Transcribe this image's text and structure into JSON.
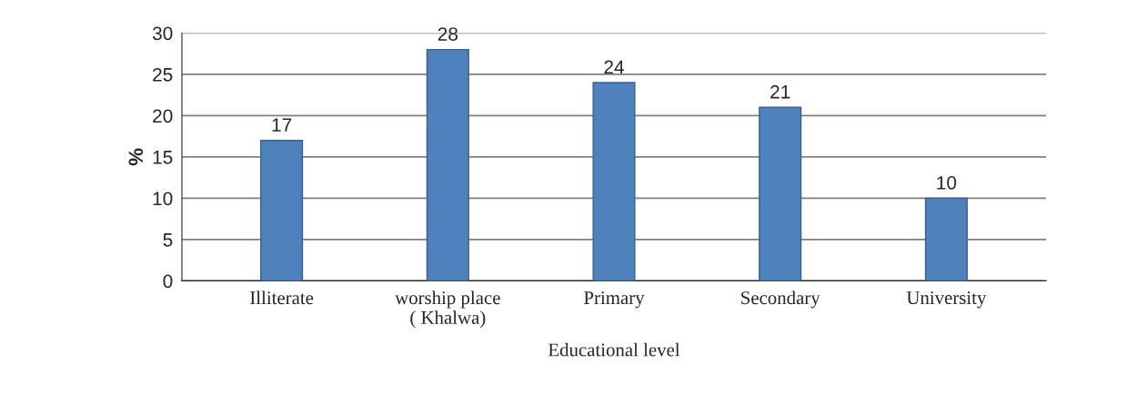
{
  "chart_data": {
    "type": "bar",
    "xlabel": "Educational level",
    "ylabel": "%",
    "categories": [
      "Illiterate",
      "worship place\n( Khalwa)",
      "Primary",
      "Secondary",
      "University"
    ],
    "values": [
      17,
      28,
      24,
      21,
      10
    ],
    "color": "#4f81bd",
    "ylim": [
      0,
      30
    ],
    "yticks": [
      0,
      5,
      10,
      15,
      20,
      25,
      30
    ],
    "grid": "y",
    "data_labels": true
  }
}
